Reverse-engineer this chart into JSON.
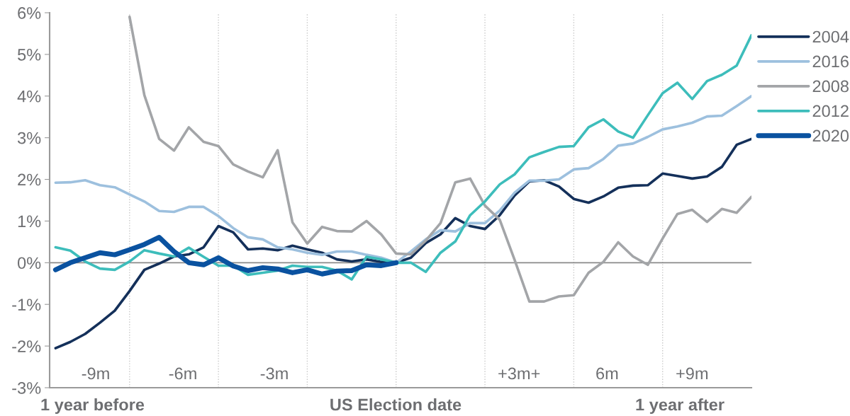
{
  "chart_data": {
    "type": "line",
    "categories": [
      null,
      null,
      null,
      null,
      null,
      null,
      null,
      null,
      null,
      null,
      null,
      null,
      null,
      null,
      null,
      null,
      null,
      null,
      null,
      null,
      null,
      null,
      null,
      null,
      null,
      null,
      null,
      null,
      null,
      null,
      null,
      null,
      null,
      null,
      null,
      null,
      null,
      null,
      null,
      null,
      null,
      null,
      null,
      null,
      null,
      null,
      null,
      null
    ],
    "series": [
      {
        "name": "2004",
        "color": "#14305a",
        "values": [
          -2.05,
          -1.9,
          -1.71,
          -1.44,
          -1.15,
          -0.68,
          -0.17,
          -0.02,
          0.15,
          0.2,
          0.37,
          0.88,
          0.73,
          0.32,
          0.34,
          0.3,
          0.41,
          0.32,
          0.24,
          0.08,
          0.03,
          0.08,
          0.02,
          0,
          0.12,
          0.47,
          0.68,
          1.07,
          0.88,
          0.81,
          1.14,
          1.61,
          1.95,
          1.98,
          1.83,
          1.53,
          1.44,
          1.59,
          1.8,
          1.85,
          1.86,
          2.14,
          2.08,
          2.02,
          2.07,
          2.3,
          2.83,
          2.97
        ]
      },
      {
        "name": "2016",
        "color": "#9dc0de",
        "values": [
          1.92,
          1.93,
          1.98,
          1.86,
          1.81,
          1.64,
          1.47,
          1.24,
          1.22,
          1.34,
          1.34,
          1.12,
          0.83,
          0.61,
          0.56,
          0.37,
          0.32,
          0.24,
          0.19,
          0.27,
          0.27,
          0.19,
          0.12,
          0,
          0.27,
          0.56,
          0.78,
          0.75,
          0.95,
          0.95,
          1.25,
          1.68,
          1.97,
          1.97,
          2.0,
          2.24,
          2.27,
          2.49,
          2.81,
          2.86,
          3.02,
          3.2,
          3.27,
          3.36,
          3.51,
          3.53,
          3.76,
          4.0
        ]
      },
      {
        "name": "2008",
        "color": "#a3a5a8",
        "values": [
          null,
          null,
          null,
          null,
          null,
          5.9,
          4.02,
          2.97,
          2.69,
          3.25,
          2.9,
          2.8,
          2.36,
          2.19,
          2.05,
          2.7,
          0.97,
          0.46,
          0.86,
          0.76,
          0.75,
          1.0,
          0.68,
          0.22,
          0.2,
          0.53,
          0.95,
          1.93,
          2.02,
          1.37,
          1.03,
          0.07,
          -0.93,
          -0.93,
          -0.81,
          -0.78,
          -0.24,
          0.02,
          0.49,
          0.15,
          -0.05,
          0.58,
          1.17,
          1.27,
          0.98,
          1.29,
          1.2,
          1.58
        ]
      },
      {
        "name": "2012",
        "color": "#3dbdbb",
        "values": [
          0.37,
          0.29,
          0.03,
          -0.14,
          -0.17,
          0.03,
          0.3,
          0.22,
          0.15,
          0.36,
          0.14,
          -0.07,
          -0.07,
          -0.29,
          -0.24,
          -0.19,
          -0.07,
          -0.1,
          -0.1,
          -0.19,
          -0.4,
          0.14,
          0.08,
          0,
          0,
          -0.22,
          0.24,
          0.51,
          1.14,
          1.47,
          1.88,
          2.12,
          2.53,
          2.66,
          2.78,
          2.8,
          3.25,
          3.44,
          3.15,
          3.0,
          3.54,
          4.07,
          4.32,
          3.93,
          4.36,
          4.51,
          4.73,
          5.46
        ]
      },
      {
        "name": "2020",
        "color": "#0a52a0",
        "values": [
          -0.17,
          0,
          0.12,
          0.24,
          0.19,
          0.31,
          0.44,
          0.61,
          0.27,
          0,
          -0.05,
          0.12,
          -0.08,
          -0.19,
          -0.12,
          -0.15,
          -0.24,
          -0.17,
          -0.27,
          -0.2,
          -0.19,
          -0.05,
          -0.07,
          0,
          null,
          null,
          null,
          null,
          null,
          null,
          null,
          null,
          null,
          null,
          null,
          null,
          null,
          null,
          null,
          null,
          null,
          null,
          null,
          null,
          null,
          null,
          null,
          null
        ]
      }
    ],
    "ylim": [
      -3,
      6
    ],
    "yticks": [
      {
        "value": -3,
        "label": "-3%"
      },
      {
        "value": -2,
        "label": "-2%"
      },
      {
        "value": -1,
        "label": "-1%"
      },
      {
        "value": 0,
        "label": "0%"
      },
      {
        "value": 1,
        "label": "1%"
      },
      {
        "value": 2,
        "label": "2%"
      },
      {
        "value": 3,
        "label": "3%"
      },
      {
        "value": 4,
        "label": "4%"
      },
      {
        "value": 5,
        "label": "5%"
      },
      {
        "value": 6,
        "label": "6%"
      }
    ],
    "tick_labels": "y",
    "ref_lines": [
      {
        "axis": "y",
        "value": 0,
        "color": "#8a8a8a",
        "line_style": "solid"
      }
    ],
    "annotations": [
      "-9m",
      "-6m",
      "-3m",
      "+3m+",
      "6m",
      "+9m",
      "1 year before",
      "US Election date",
      "1 year after"
    ],
    "legend": "right",
    "grid": "x",
    "marker": "none",
    "line_style": "solid"
  }
}
